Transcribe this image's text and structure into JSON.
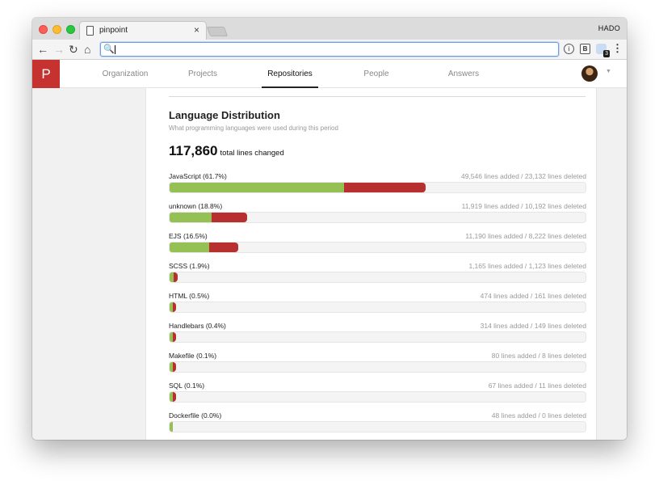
{
  "browser": {
    "tab_title": "pinpoint",
    "tab_close": "×",
    "profile_name": "HADO",
    "nav": {
      "back": "←",
      "forward": "→",
      "reload": "↻",
      "home": "⌂"
    },
    "omnibox_value": "",
    "search_glyph": "🔍",
    "extensions": {
      "info": "i",
      "box": "B",
      "badge": "3",
      "menu": "⋮"
    }
  },
  "app": {
    "logo": "P",
    "nav_items": [
      {
        "label": "Organization",
        "active": false
      },
      {
        "label": "Projects",
        "active": false
      },
      {
        "label": "Repositories",
        "active": true
      },
      {
        "label": "People",
        "active": false
      },
      {
        "label": "Answers",
        "active": false
      }
    ],
    "avatar_caret": "▼"
  },
  "section": {
    "title": "Language Distribution",
    "subtitle": "What programming languages were used during this period",
    "total_value": "117,860",
    "total_label": "total lines changed"
  },
  "languages": [
    {
      "label": "JavaScript (61.7%)",
      "stats": "49,546 lines added / 23,132 lines deleted",
      "added_frac": 0.42,
      "deleted_frac": 0.196
    },
    {
      "label": "unknown (18.8%)",
      "stats": "11,919 lines added / 10,192 lines deleted",
      "added_frac": 0.101,
      "deleted_frac": 0.086
    },
    {
      "label": "EJS (16.5%)",
      "stats": "11,190 lines added / 8,222 lines deleted",
      "added_frac": 0.095,
      "deleted_frac": 0.07
    },
    {
      "label": "SCSS (1.9%)",
      "stats": "1,165 lines added / 1,123 lines deleted",
      "added_frac": 0.01,
      "deleted_frac": 0.01
    },
    {
      "label": "HTML (0.5%)",
      "stats": "474 lines added / 161 lines deleted",
      "added_frac": 0.004,
      "deleted_frac": 0.001
    },
    {
      "label": "Handlebars (0.4%)",
      "stats": "314 lines added / 149 lines deleted",
      "added_frac": 0.003,
      "deleted_frac": 0.001
    },
    {
      "label": "Makefile (0.1%)",
      "stats": "80 lines added / 8 lines deleted",
      "added_frac": 0.001,
      "deleted_frac": 0.0001
    },
    {
      "label": "SQL (0.1%)",
      "stats": "67 lines added / 11 lines deleted",
      "added_frac": 0.001,
      "deleted_frac": 0.0001
    },
    {
      "label": "Dockerfile (0.0%)",
      "stats": "48 lines added / 0 lines deleted",
      "added_frac": 0.0004,
      "deleted_frac": 0
    }
  ],
  "colors": {
    "added": "#95c053",
    "deleted": "#b82f2f",
    "brand": "#c53230"
  }
}
